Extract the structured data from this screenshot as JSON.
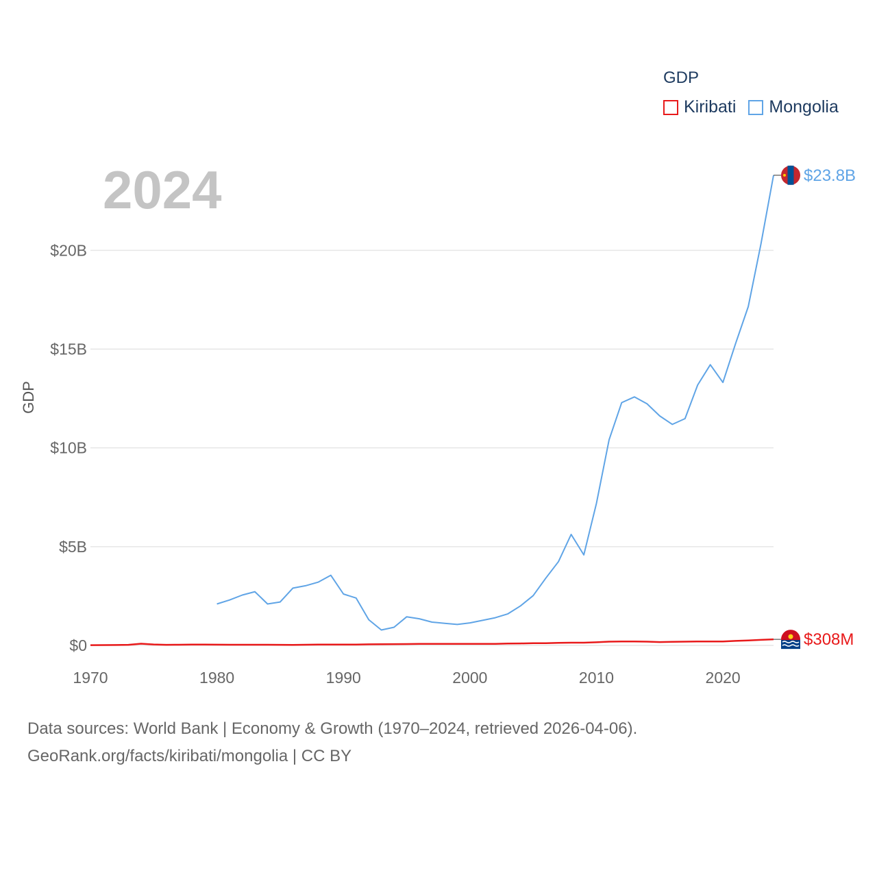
{
  "legend": {
    "title": "GDP",
    "items": [
      {
        "label": "Kiribati",
        "color": "#e8191a"
      },
      {
        "label": "Mongolia",
        "color": "#5fa4e6"
      }
    ]
  },
  "year_label": "2024",
  "footer": {
    "line1": "Data sources: World Bank | Economy & Growth (1970–2024, retrieved 2026-04-06).",
    "line2": "GeoRank.org/facts/kiribati/mongolia | CC BY"
  },
  "chart_data": {
    "type": "line",
    "title": "",
    "xlabel": "",
    "ylabel": "GDP",
    "xlim": [
      1970,
      2024
    ],
    "ylim": [
      0,
      24
    ],
    "x_ticks": [
      1970,
      1980,
      1990,
      2000,
      2010,
      2020
    ],
    "y_ticks": [
      {
        "value": 0,
        "label": "$0"
      },
      {
        "value": 5,
        "label": "$5B"
      },
      {
        "value": 10,
        "label": "$10B"
      },
      {
        "value": 15,
        "label": "$15B"
      },
      {
        "value": 20,
        "label": "$20B"
      }
    ],
    "grid": true,
    "units": "billions USD",
    "series": [
      {
        "name": "Kiribati",
        "color": "#e8191a",
        "end_label": "$308M",
        "flag": "kiribati-flag",
        "x": [
          1970,
          1971,
          1972,
          1973,
          1974,
          1975,
          1976,
          1977,
          1978,
          1979,
          1980,
          1981,
          1982,
          1983,
          1984,
          1985,
          1986,
          1987,
          1988,
          1989,
          1990,
          1991,
          1992,
          1993,
          1994,
          1995,
          1996,
          1997,
          1998,
          1999,
          2000,
          2001,
          2002,
          2003,
          2004,
          2005,
          2006,
          2007,
          2008,
          2009,
          2010,
          2011,
          2012,
          2013,
          2014,
          2015,
          2016,
          2017,
          2018,
          2019,
          2020,
          2021,
          2022,
          2023,
          2024
        ],
        "values": [
          0.014,
          0.017,
          0.02,
          0.03,
          0.085,
          0.05,
          0.03,
          0.035,
          0.045,
          0.04,
          0.038,
          0.036,
          0.035,
          0.034,
          0.036,
          0.03,
          0.028,
          0.033,
          0.04,
          0.04,
          0.04,
          0.045,
          0.055,
          0.06,
          0.065,
          0.07,
          0.075,
          0.08,
          0.075,
          0.08,
          0.08,
          0.075,
          0.08,
          0.095,
          0.1,
          0.11,
          0.11,
          0.13,
          0.14,
          0.14,
          0.16,
          0.19,
          0.2,
          0.2,
          0.19,
          0.17,
          0.18,
          0.19,
          0.2,
          0.2,
          0.2,
          0.23,
          0.25,
          0.28,
          0.308
        ]
      },
      {
        "name": "Mongolia",
        "color": "#5fa4e6",
        "end_label": "$23.8B",
        "flag": "mongolia-flag",
        "x": [
          1980,
          1981,
          1982,
          1983,
          1984,
          1985,
          1986,
          1987,
          1988,
          1989,
          1990,
          1991,
          1992,
          1993,
          1994,
          1995,
          1996,
          1997,
          1998,
          1999,
          2000,
          2001,
          2002,
          2003,
          2004,
          2005,
          2006,
          2007,
          2008,
          2009,
          2010,
          2011,
          2012,
          2013,
          2014,
          2015,
          2016,
          2017,
          2018,
          2019,
          2020,
          2021,
          2022,
          2023,
          2024
        ],
        "values": [
          2.1,
          2.3,
          2.55,
          2.72,
          2.1,
          2.2,
          2.9,
          3.02,
          3.2,
          3.55,
          2.6,
          2.4,
          1.3,
          0.78,
          0.92,
          1.45,
          1.35,
          1.18,
          1.12,
          1.06,
          1.14,
          1.27,
          1.4,
          1.6,
          2.0,
          2.52,
          3.41,
          4.24,
          5.62,
          4.58,
          7.19,
          10.41,
          12.29,
          12.58,
          12.23,
          11.62,
          11.19,
          11.48,
          13.18,
          14.21,
          13.31,
          15.28,
          17.15,
          20.3,
          23.8
        ]
      }
    ]
  }
}
